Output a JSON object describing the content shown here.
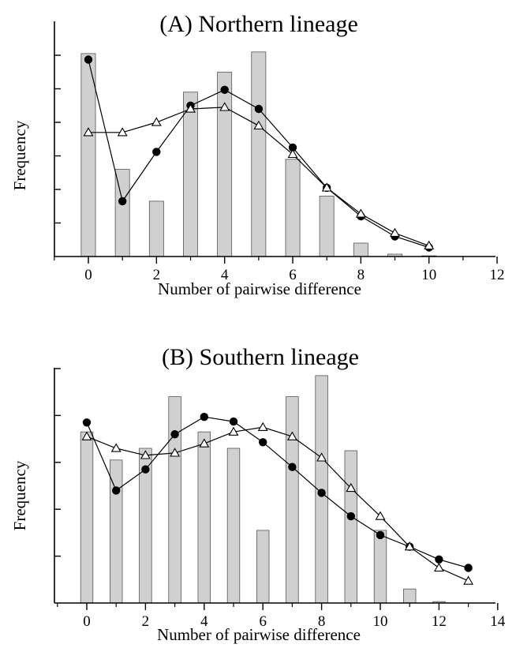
{
  "chart_data": [
    {
      "type": "bar+line",
      "title": "(A) Northern lineage",
      "xlabel": "Number of pairwise difference",
      "ylabel": "Frequency",
      "xlim": [
        -1,
        12
      ],
      "ylim": [
        0,
        6.6
      ],
      "x_ticks": [
        0,
        2,
        4,
        6,
        8,
        10,
        12
      ],
      "x_minor_ticks": [
        -1,
        1,
        3,
        5,
        7,
        9,
        11
      ],
      "y_ticks": [
        1,
        2,
        3,
        4,
        5,
        6
      ],
      "bar_color": "#d0d0d0",
      "bars": {
        "x": [
          0,
          1,
          2,
          3,
          4,
          5,
          6,
          7,
          8,
          9,
          10
        ],
        "values": [
          6.05,
          2.6,
          1.65,
          4.9,
          5.5,
          6.1,
          2.9,
          1.8,
          0.4,
          0.07,
          0.02
        ]
      },
      "series": [
        {
          "marker": "circle-filled",
          "x": [
            0,
            1,
            2,
            3,
            4,
            5,
            6,
            7,
            8,
            9,
            10
          ],
          "values": [
            5.87,
            1.65,
            3.12,
            4.5,
            4.97,
            4.4,
            3.25,
            2.05,
            1.2,
            0.6,
            0.27
          ]
        },
        {
          "marker": "triangle-open",
          "x": [
            0,
            1,
            2,
            3,
            4,
            5,
            6,
            7,
            8,
            9,
            10
          ],
          "values": [
            3.7,
            3.7,
            4.0,
            4.4,
            4.45,
            3.9,
            3.05,
            2.05,
            1.27,
            0.7,
            0.32
          ]
        }
      ]
    },
    {
      "type": "bar+line",
      "title": "(B) Southern lineage",
      "xlabel": "Number of pairwise difference",
      "ylabel": "Frequency",
      "xlim": [
        -1,
        14
      ],
      "ylim": [
        0,
        5.05
      ],
      "x_ticks": [
        0,
        2,
        4,
        6,
        8,
        10,
        12,
        14
      ],
      "x_minor_ticks": [
        -1,
        1,
        3,
        5,
        7,
        9,
        11,
        13
      ],
      "y_ticks": [
        1,
        2,
        3,
        4,
        5
      ],
      "bar_color": "#d0d0d0",
      "bars": {
        "x": [
          0,
          1,
          2,
          3,
          4,
          5,
          6,
          7,
          8,
          9,
          10,
          11,
          12
        ],
        "values": [
          3.65,
          3.05,
          3.3,
          4.4,
          3.65,
          3.3,
          1.55,
          4.4,
          4.85,
          3.25,
          1.55,
          0.3,
          0.03
        ]
      },
      "series": [
        {
          "marker": "circle-filled",
          "x": [
            0,
            1,
            2,
            3,
            4,
            5,
            6,
            7,
            8,
            9,
            10,
            11,
            12,
            13
          ],
          "values": [
            3.85,
            2.4,
            2.85,
            3.6,
            3.97,
            3.87,
            3.43,
            2.9,
            2.35,
            1.85,
            1.45,
            1.2,
            0.93,
            0.75
          ]
        },
        {
          "marker": "triangle-open",
          "x": [
            0,
            1,
            2,
            3,
            4,
            5,
            6,
            7,
            8,
            9,
            10,
            11,
            12,
            13
          ],
          "values": [
            3.55,
            3.3,
            3.15,
            3.2,
            3.4,
            3.65,
            3.75,
            3.55,
            3.1,
            2.45,
            1.85,
            1.2,
            0.75,
            0.47
          ]
        }
      ]
    }
  ]
}
